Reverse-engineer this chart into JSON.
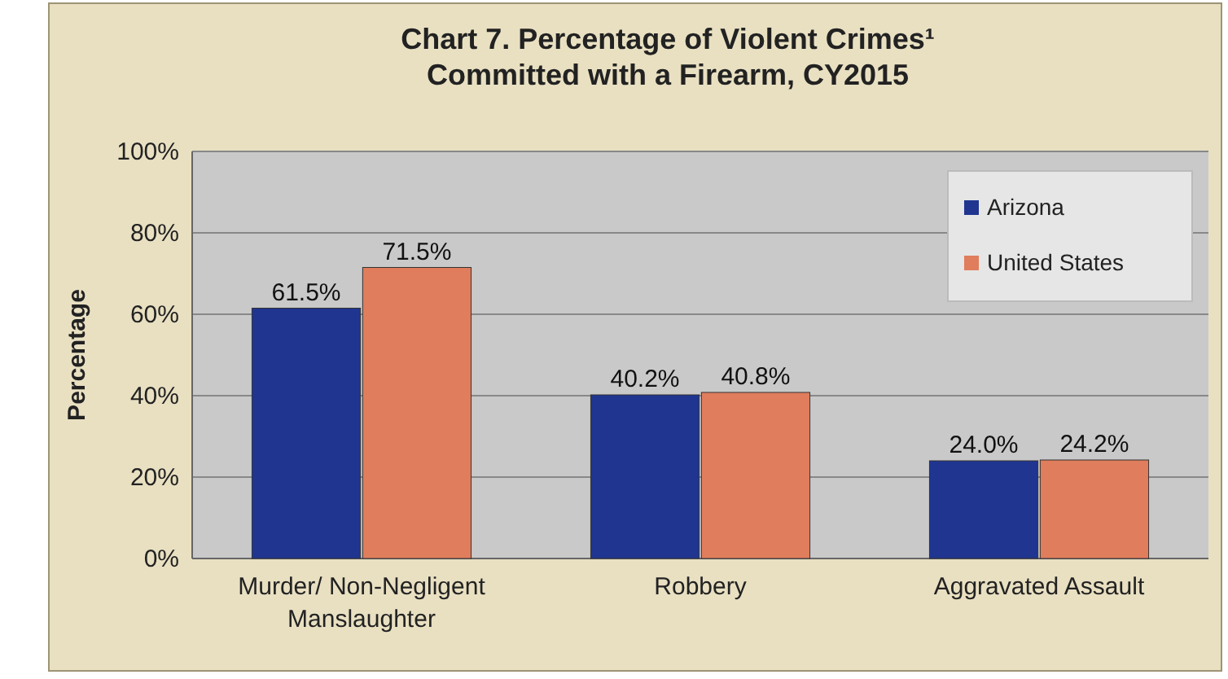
{
  "chart_data": {
    "type": "bar",
    "title": "Chart 7. Percentage of Violent Crimes¹ Committed with a Firearm, CY2015",
    "ylabel": "Percentage",
    "categories": [
      "Murder/ Non-Negligent Manslaughter",
      "Robbery",
      "Aggravated Assault"
    ],
    "series": [
      {
        "name": "Arizona",
        "color": "#1f3590",
        "values": [
          61.5,
          40.2,
          24.0
        ],
        "value_labels": [
          "61.5%",
          "40.2%",
          "24.0%"
        ]
      },
      {
        "name": "United States",
        "color": "#e07d5c",
        "values": [
          71.5,
          40.8,
          24.2
        ],
        "value_labels": [
          "71.5%",
          "40.8%",
          "24.2%"
        ]
      }
    ],
    "ylim": [
      0,
      100
    ],
    "yticks": [
      {
        "value": 0,
        "label": "0%"
      },
      {
        "value": 20,
        "label": "20%"
      },
      {
        "value": 40,
        "label": "40%"
      },
      {
        "value": 60,
        "label": "60%"
      },
      {
        "value": 80,
        "label": "80%"
      },
      {
        "value": 100,
        "label": "100%"
      }
    ],
    "grid": "y",
    "legend": "top right"
  }
}
